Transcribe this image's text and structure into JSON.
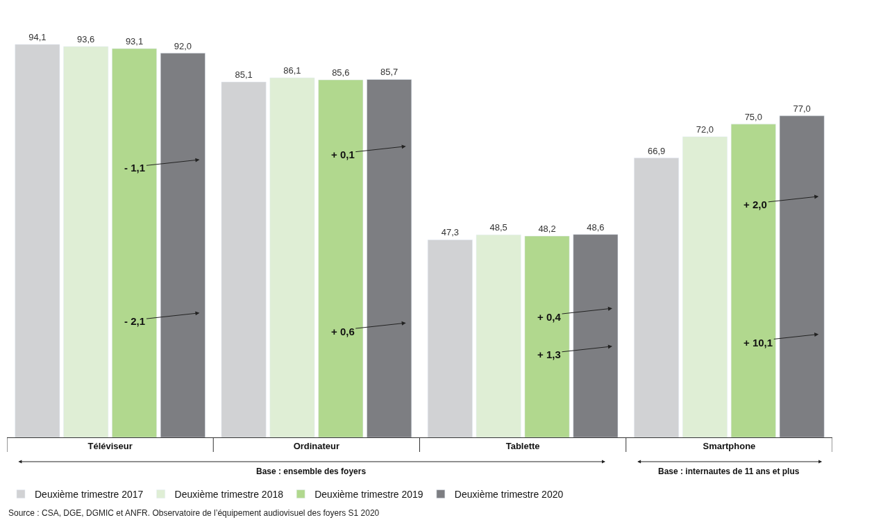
{
  "chart_data": {
    "type": "bar",
    "categories": [
      "Téléviseur",
      "Ordinateur",
      "Tablette",
      "Smartphone"
    ],
    "series": [
      {
        "name": "Deuxième trimestre 2017",
        "color": "#d1d2d4",
        "values": [
          94.1,
          85.1,
          47.3,
          66.9
        ],
        "value_labels": [
          "94,1",
          "85,1",
          "47,3",
          "66,9"
        ]
      },
      {
        "name": "Deuxième trimestre 2018",
        "color": "#dfeed5",
        "values": [
          93.6,
          86.1,
          48.5,
          72.0
        ],
        "value_labels": [
          "93,6",
          "86,1",
          "48,5",
          "72,0"
        ]
      },
      {
        "name": "Deuxième trimestre 2019",
        "color": "#b1d88e",
        "values": [
          93.1,
          85.6,
          48.2,
          75.0
        ],
        "value_labels": [
          "93,1",
          "85,6",
          "48,2",
          "75,0"
        ]
      },
      {
        "name": "Deuxième trimestre 2020",
        "color": "#7d7e82",
        "values": [
          92.0,
          85.7,
          48.6,
          77.0
        ],
        "value_labels": [
          "92,0",
          "85,7",
          "48,6",
          "77,0"
        ]
      }
    ],
    "legend": "bottom left",
    "annotations": [
      {
        "text": "- 1,1",
        "x": "Téléviseur",
        "y": 66.5
      },
      {
        "text": "- 2,1",
        "x": "Téléviseur",
        "y": 29.8
      },
      {
        "text": "+ 0,1",
        "x": "Ordinateur",
        "y": 69.7
      },
      {
        "text": "+ 0,6",
        "x": "Ordinateur",
        "y": 27.4
      },
      {
        "text": "+ 0,4",
        "x": "Tablette",
        "y": 30.9
      },
      {
        "text": "+ 1,3",
        "x": "Tablette",
        "y": 21.8
      },
      {
        "text": "+ 2,0",
        "x": "Smartphone",
        "y": 57.7
      },
      {
        "text": "+ 10,1",
        "x": "Smartphone",
        "y": 24.7
      },
      "Base : ensemble des foyers",
      "Base : internautes de 11 ans et plus",
      "Source : CSA, DGE, DGMIC et ANFR. Observatoire de l’équipement audiovisuel des foyers S1 2020"
    ]
  }
}
